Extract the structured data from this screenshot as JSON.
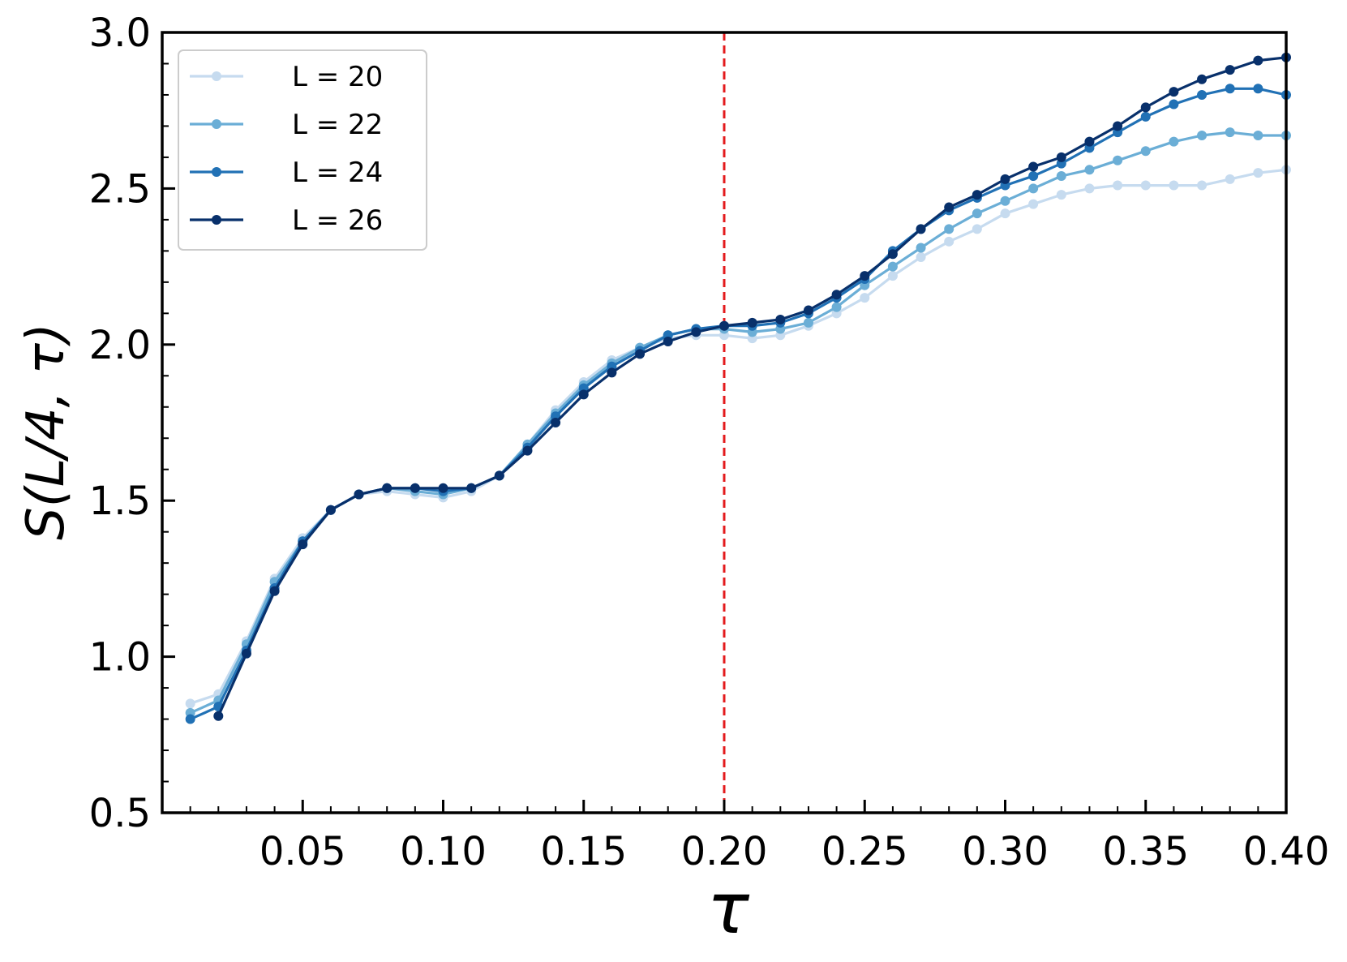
{
  "chart_data": {
    "type": "line",
    "xlabel": "τ",
    "ylabel": "S(L/4, τ)",
    "xlim": [
      0.0,
      0.4
    ],
    "ylim": [
      0.5,
      3.0
    ],
    "x_ticks": [
      "0.05",
      "0.10",
      "0.15",
      "0.20",
      "0.25",
      "0.30",
      "0.35",
      "0.40"
    ],
    "y_ticks": [
      "0.5",
      "1.0",
      "1.5",
      "2.0",
      "2.5",
      "3.0"
    ],
    "grid": false,
    "legend_position": "top-left",
    "vertical_line": {
      "x": 0.2,
      "color": "#e31a1c",
      "style": "dashed"
    },
    "x": [
      0.01,
      0.02,
      0.03,
      0.04,
      0.05,
      0.06,
      0.07,
      0.08,
      0.09,
      0.1,
      0.11,
      0.12,
      0.13,
      0.14,
      0.15,
      0.16,
      0.17,
      0.18,
      0.19,
      0.2,
      0.21,
      0.22,
      0.23,
      0.24,
      0.25,
      0.26,
      0.27,
      0.28,
      0.29,
      0.3,
      0.31,
      0.32,
      0.33,
      0.34,
      0.35,
      0.36,
      0.37,
      0.38,
      0.39,
      0.4
    ],
    "series": [
      {
        "name": "L = 20",
        "color": "#c6dbef",
        "values": [
          0.85,
          0.88,
          1.05,
          1.25,
          1.38,
          1.47,
          1.52,
          1.53,
          1.52,
          1.51,
          1.53,
          1.58,
          1.68,
          1.79,
          1.88,
          1.95,
          1.99,
          2.02,
          2.03,
          2.03,
          2.02,
          2.03,
          2.06,
          2.1,
          2.15,
          2.22,
          2.28,
          2.33,
          2.37,
          2.42,
          2.45,
          2.48,
          2.5,
          2.51,
          2.51,
          2.51,
          2.51,
          2.53,
          2.55,
          2.56
        ]
      },
      {
        "name": "L = 22",
        "color": "#6baed6",
        "values": [
          0.82,
          0.86,
          1.04,
          1.24,
          1.37,
          1.47,
          1.52,
          1.54,
          1.53,
          1.52,
          1.54,
          1.58,
          1.68,
          1.78,
          1.87,
          1.94,
          1.99,
          2.03,
          2.05,
          2.05,
          2.04,
          2.05,
          2.07,
          2.12,
          2.19,
          2.25,
          2.31,
          2.37,
          2.42,
          2.46,
          2.5,
          2.54,
          2.56,
          2.59,
          2.62,
          2.65,
          2.67,
          2.68,
          2.67,
          2.67
        ]
      },
      {
        "name": "L = 24",
        "color": "#2171b5",
        "values": [
          0.8,
          0.84,
          1.02,
          1.22,
          1.37,
          1.47,
          1.52,
          1.54,
          1.54,
          1.53,
          1.54,
          1.58,
          1.67,
          1.77,
          1.86,
          1.93,
          1.98,
          2.03,
          2.05,
          2.06,
          2.06,
          2.07,
          2.1,
          2.15,
          2.21,
          2.3,
          2.37,
          2.43,
          2.47,
          2.51,
          2.54,
          2.58,
          2.63,
          2.68,
          2.73,
          2.77,
          2.8,
          2.82,
          2.82,
          2.8
        ]
      },
      {
        "name": "L = 26",
        "color": "#08306b",
        "values": [
          null,
          0.81,
          1.01,
          1.21,
          1.36,
          1.47,
          1.52,
          1.54,
          1.54,
          1.54,
          1.54,
          1.58,
          1.66,
          1.75,
          1.84,
          1.91,
          1.97,
          2.01,
          2.04,
          2.06,
          2.07,
          2.08,
          2.11,
          2.16,
          2.22,
          2.29,
          2.37,
          2.44,
          2.48,
          2.53,
          2.57,
          2.6,
          2.65,
          2.7,
          2.76,
          2.81,
          2.85,
          2.88,
          2.91,
          2.92
        ]
      }
    ]
  }
}
